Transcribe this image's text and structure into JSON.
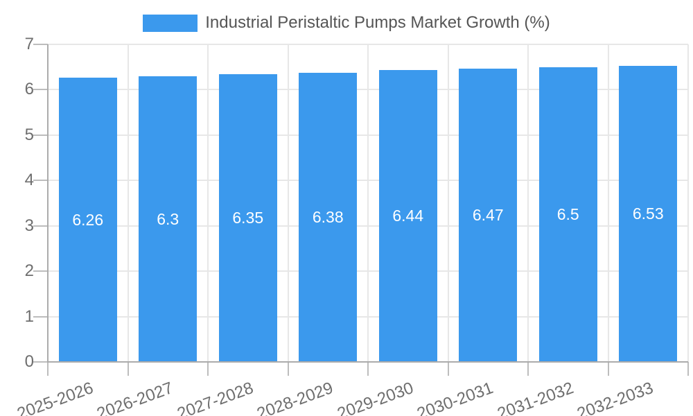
{
  "chart_data": {
    "type": "bar",
    "title": "Industrial Peristaltic Pumps Market Growth (%)",
    "legend": {
      "label": "Industrial Peristaltic Pumps Market Growth (%)",
      "position": "top"
    },
    "categories": [
      "2025-2026",
      "2026-2027",
      "2027-2028",
      "2028-2029",
      "2029-2030",
      "2030-2031",
      "2031-2032",
      "2032-2033"
    ],
    "series": [
      {
        "name": "Industrial Peristaltic Pumps Market Growth (%)",
        "values": [
          6.26,
          6.3,
          6.35,
          6.38,
          6.44,
          6.47,
          6.5,
          6.53
        ]
      }
    ],
    "bar_value_labels": [
      "6.26",
      "6.3",
      "6.35",
      "6.38",
      "6.44",
      "6.47",
      "6.5",
      "6.53"
    ],
    "xlabel": "",
    "ylabel": "",
    "ylim": [
      0,
      7
    ],
    "y_ticks": [
      0,
      1,
      2,
      3,
      4,
      5,
      6,
      7
    ],
    "grid": true,
    "x_tick_rotation_deg": -20,
    "colors": {
      "bar": "#3b99ed",
      "bar_label": "#ffffff",
      "gridline": "#e7e7e7",
      "axis": "#ababab",
      "tick": "#bdbdbd",
      "tick_label": "#6e6e6e",
      "legend_text": "#555555",
      "background": "#ffffff"
    }
  }
}
